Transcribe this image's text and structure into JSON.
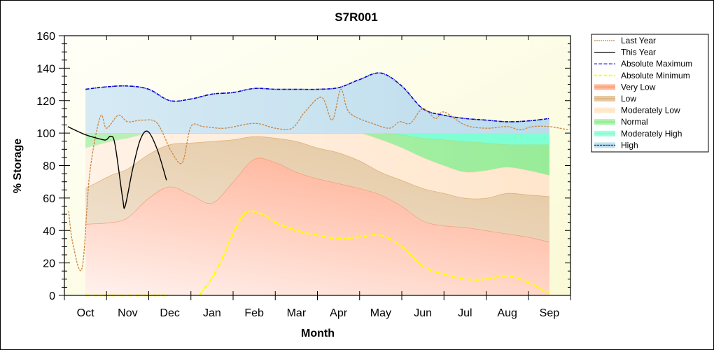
{
  "chart_data": {
    "type": "area",
    "title": "S7R001",
    "xlabel": "Month",
    "ylabel": "% Storage",
    "ylim": [
      0,
      160
    ],
    "yticks": [
      0,
      20,
      40,
      60,
      80,
      100,
      120,
      140,
      160
    ],
    "xlim": [
      0,
      12
    ],
    "x_unit": "months since Oct 1 (water year)",
    "categories": [
      "Oct",
      "Nov",
      "Dec",
      "Jan",
      "Feb",
      "Mar",
      "Apr",
      "May",
      "Jun",
      "Jul",
      "Aug",
      "Sep"
    ],
    "grid": false,
    "legend_position": "right",
    "legend": [
      {
        "name": "Last Year",
        "color": "#cd853f",
        "style": "dashed-line"
      },
      {
        "name": "This Year",
        "color": "#000000",
        "style": "solid-line"
      },
      {
        "name": "Absolute Maximum",
        "color": "#0000cd",
        "style": "dash-dot-line"
      },
      {
        "name": "Absolute Minimum",
        "color": "#ffff00",
        "style": "dash-dot-line"
      },
      {
        "name": "Very Low",
        "color": "#ffa07a",
        "style": "band"
      },
      {
        "name": "Low",
        "color": "#deb887",
        "style": "band"
      },
      {
        "name": "Moderately Low",
        "color": "#ffe4c4",
        "style": "band"
      },
      {
        "name": "Normal",
        "color": "#90ee90",
        "style": "band"
      },
      {
        "name": "Moderately High",
        "color": "#7fffd4",
        "style": "band"
      },
      {
        "name": "High",
        "color": "#add8e6",
        "style": "band"
      }
    ],
    "bands_x": [
      0.5,
      1.1,
      1.5,
      2.0,
      2.5,
      3.0,
      3.5,
      4.0,
      4.5,
      5.0,
      5.5,
      6.0,
      6.5,
      7.0,
      7.5,
      8.0,
      8.5,
      9.0,
      9.5,
      10.0,
      10.5,
      11.0,
      11.5
    ],
    "series": [
      {
        "name": "Very Low",
        "top": [
          44,
          45,
          48,
          60,
          67,
          62,
          57,
          70,
          84,
          82,
          76,
          72,
          69,
          66,
          62,
          55,
          46,
          43,
          42,
          40,
          38,
          36,
          33
        ]
      },
      {
        "name": "Low",
        "top": [
          66,
          74,
          78,
          87,
          93,
          94,
          95,
          96,
          98,
          97,
          95,
          91,
          88,
          83,
          76,
          71,
          66,
          63,
          60,
          60,
          63,
          62,
          61
        ]
      },
      {
        "name": "Moderately Low",
        "top": [
          91,
          95,
          97,
          100,
          100,
          100,
          100,
          100,
          100,
          100,
          100,
          100,
          100,
          100,
          96,
          91,
          85,
          80,
          76,
          77,
          79,
          77,
          74
        ]
      },
      {
        "name": "Normal",
        "top": [
          100,
          100,
          100,
          100,
          100,
          100,
          100,
          100,
          100,
          100,
          100,
          100,
          100,
          100,
          100,
          99,
          97,
          96,
          95,
          94,
          93,
          93,
          93
        ]
      },
      {
        "name": "Moderately High",
        "top": [
          100,
          100,
          100,
          100,
          100,
          100,
          100,
          100,
          100,
          100,
          100,
          100,
          100,
          100,
          100,
          100,
          100,
          100,
          100,
          100,
          100,
          100,
          100
        ]
      },
      {
        "name": "High",
        "top": [
          127,
          129,
          129,
          127,
          120,
          121,
          124,
          125,
          127.5,
          127,
          127,
          127,
          128,
          133,
          137,
          129,
          115,
          111,
          109,
          108,
          107,
          107.5,
          109
        ]
      },
      {
        "name": "Absolute Maximum",
        "x": [
          0.5,
          1.0,
          1.5,
          2.0,
          2.5,
          3.0,
          3.5,
          4.0,
          4.5,
          5.0,
          5.5,
          6.0,
          6.5,
          7.0,
          7.5,
          8.0,
          8.5,
          9.0,
          9.5,
          10.0,
          10.5,
          11.0,
          11.5
        ],
        "values": [
          127,
          128.5,
          129,
          127,
          120,
          121,
          124,
          125,
          127.5,
          127,
          127,
          127,
          128,
          133,
          137,
          129,
          115,
          111,
          109,
          108,
          107,
          107.5,
          109
        ]
      },
      {
        "name": "Absolute Minimum",
        "x": [
          0.5,
          1.0,
          1.5,
          2.0,
          2.5,
          3.0,
          3.2,
          3.6,
          4.0,
          4.3,
          4.7,
          5.0,
          5.5,
          6.0,
          6.5,
          7.0,
          7.5,
          8.0,
          8.5,
          9.0,
          9.5,
          10.0,
          10.5,
          11.0,
          11.5
        ],
        "values": [
          0,
          0,
          0,
          0,
          0,
          null,
          0,
          15,
          38,
          51,
          50,
          45,
          40,
          37,
          35,
          36,
          37,
          30,
          18,
          13,
          10,
          10,
          12,
          8,
          1
        ]
      },
      {
        "name": "This Year",
        "x": [
          0.08,
          0.5,
          0.9,
          1.0,
          1.1,
          1.2,
          1.38,
          1.44,
          1.62,
          1.8,
          1.98,
          2.2,
          2.42
        ],
        "values": [
          104,
          99,
          96,
          96,
          98,
          93,
          60,
          55,
          78,
          96,
          101,
          90,
          71
        ]
      },
      {
        "name": "Last Year",
        "x": [
          0.1,
          0.2,
          0.42,
          0.6,
          0.85,
          1.0,
          1.28,
          1.5,
          1.85,
          2.2,
          2.55,
          2.8,
          3.0,
          3.3,
          3.8,
          4.5,
          5.0,
          5.4,
          5.7,
          6.1,
          6.35,
          6.55,
          6.7,
          6.9,
          7.3,
          7.7,
          7.95,
          8.2,
          8.5,
          8.8,
          9.0,
          9.5,
          10.0,
          10.5,
          10.8,
          11.1,
          11.5,
          11.95
        ],
        "values": [
          52,
          32,
          17,
          75,
          110,
          103,
          111,
          107,
          108,
          106,
          88,
          82,
          104,
          104,
          103,
          106,
          103,
          103,
          113,
          122,
          108,
          127,
          115,
          110,
          106,
          103,
          107,
          106,
          115,
          109,
          113,
          105,
          103,
          104,
          102,
          104,
          104,
          102
        ]
      }
    ]
  }
}
